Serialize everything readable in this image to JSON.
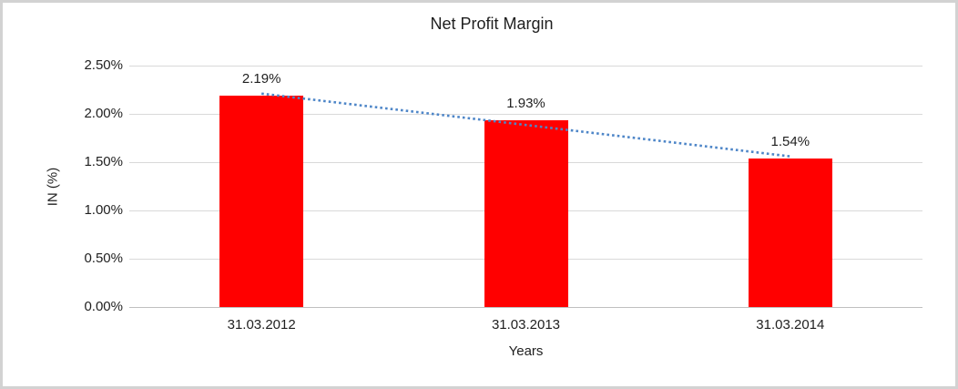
{
  "chart_data": {
    "type": "bar",
    "title": "Net Profit Margin",
    "categories": [
      "31.03.2012",
      "31.03.2013",
      "31.03.2014"
    ],
    "values": [
      2.19,
      1.93,
      1.54
    ],
    "data_labels": [
      "2.19%",
      "1.93%",
      "1.54%"
    ],
    "xlabel": "Years",
    "ylabel": "IN (%)",
    "ylim": [
      0,
      2.5
    ],
    "ytick_step": 0.5,
    "ytick_labels": [
      "0.00%",
      "0.50%",
      "1.00%",
      "1.50%",
      "2.00%",
      "2.50%"
    ],
    "legend": "none",
    "grid": "horizontal",
    "colors": {
      "bar": "#FF0000",
      "gridline": "#D9D9D9",
      "axis_line": "#BFBFBF",
      "text": "#1F1F1F",
      "trendline": "#4E86C8",
      "frame_border": "#D2D2D2"
    },
    "trendline": {
      "type": "linear",
      "style": "dotted",
      "start_value_pct": 2.21,
      "end_value_pct": 1.56
    }
  }
}
